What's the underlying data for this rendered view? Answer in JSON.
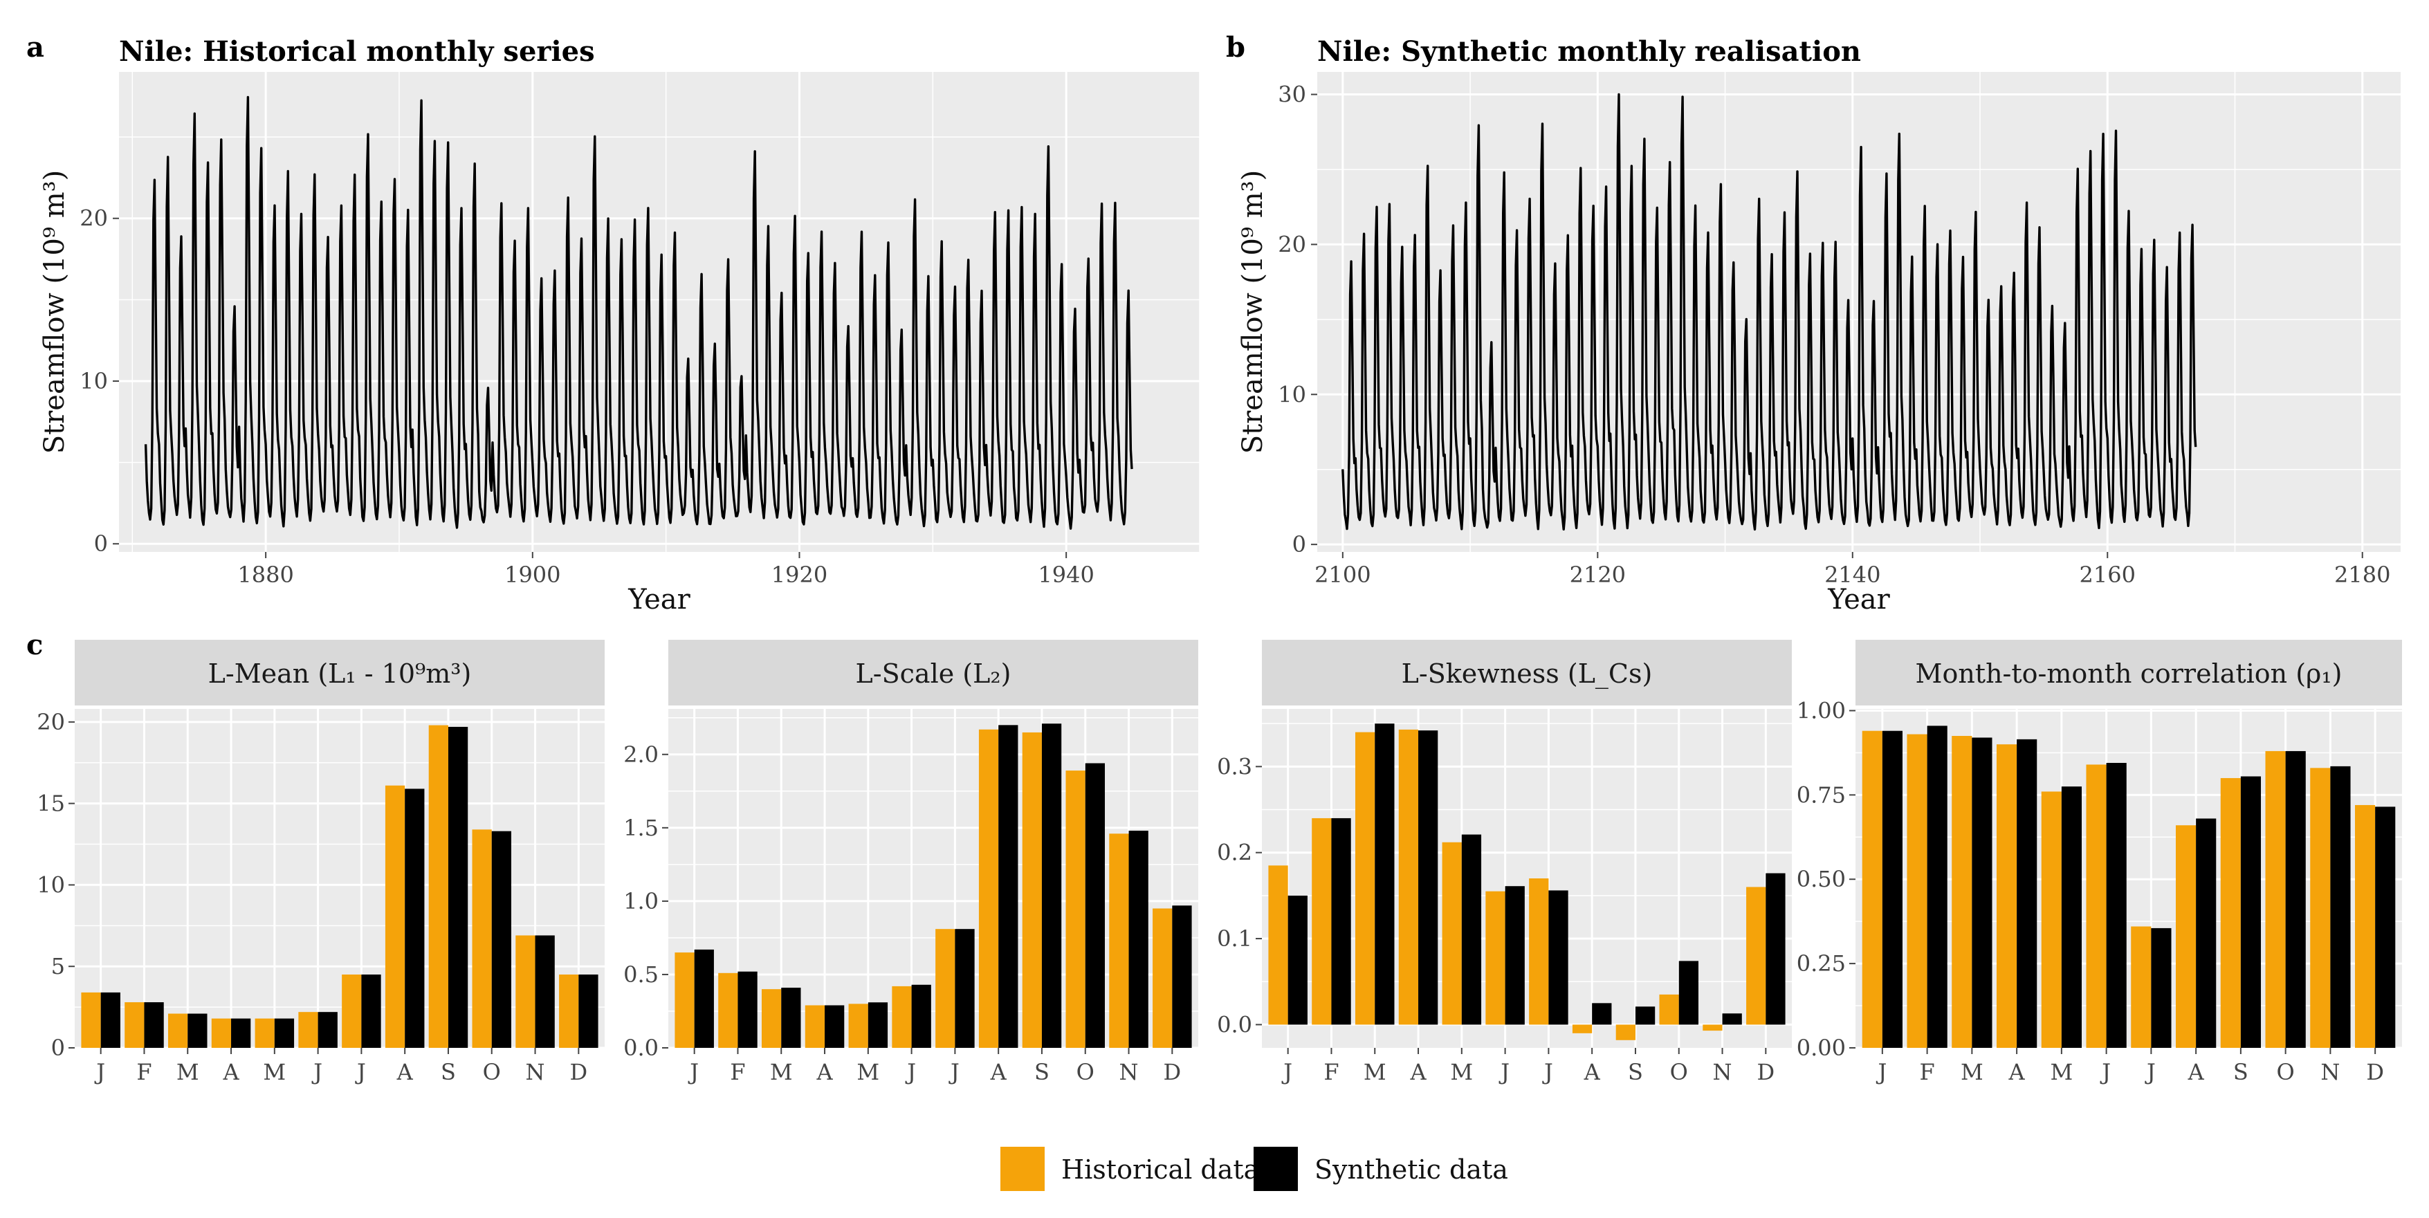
{
  "figure": {
    "panel_letters": {
      "a": "a",
      "b": "b",
      "c": "c"
    },
    "legend": [
      {
        "label": "Historical data",
        "color": "#F5A30A"
      },
      {
        "label": "Synthetic data",
        "color": "#000000"
      }
    ],
    "colors": {
      "panel_bg": "#EBEBEB",
      "grid": "#FFFFFF",
      "strip_bg": "#D9D9D9",
      "line": "#000000"
    }
  },
  "chart_data": [
    {
      "id": "a",
      "type": "line",
      "title": "Nile: Historical monthly series",
      "xlabel": "Year",
      "ylabel": "Streamflow (10⁹ m³)",
      "xlim": [
        1869,
        1950
      ],
      "ylim": [
        -0.5,
        29
      ],
      "xticks": [
        1880,
        1900,
        1920,
        1940
      ],
      "yticks": [
        0,
        10,
        20
      ],
      "start_year": 1871,
      "annual_peaks": [
        22.4,
        23.6,
        19.0,
        26.4,
        23.5,
        24.7,
        14.5,
        27.6,
        24.5,
        20.9,
        22.8,
        20.4,
        22.7,
        18.8,
        20.7,
        22.5,
        25.3,
        21.2,
        22.6,
        20.4,
        27.2,
        24.9,
        24.5,
        20.5,
        23.3,
        9.4,
        21.1,
        18.8,
        20.7,
        16.2,
        16.7,
        21.3,
        18.8,
        25.2,
        19.9,
        18.8,
        19.9,
        20.6,
        17.6,
        19.1,
        11.4,
        16.5,
        12.3,
        17.4,
        10.5,
        24.0,
        19.4,
        15.5,
        20.0,
        18.0,
        19.0,
        17.4,
        13.5,
        19.2,
        16.7,
        18.6,
        13.3,
        21.0,
        16.3,
        18.6,
        15.9,
        17.5,
        15.4,
        20.4,
        20.6,
        20.6,
        20.1,
        24.3,
        17.2,
        14.6,
        17.5,
        20.9,
        21.0,
        15.4
      ],
      "series": [
        {
          "name": "Historical monthly streamflow"
        }
      ]
    },
    {
      "id": "b",
      "type": "line",
      "title": "Nile: Synthetic monthly realisation",
      "xlabel": "Year",
      "ylabel": "Streamflow (10⁹ m³)",
      "xlim": [
        2098,
        2183
      ],
      "ylim": [
        -0.5,
        31.5
      ],
      "xticks": [
        2100,
        2120,
        2140,
        2160,
        2180
      ],
      "yticks": [
        0,
        10,
        20,
        30
      ],
      "start_year": 2100,
      "annual_peaks": [
        19.0,
        20.6,
        22.5,
        22.8,
        19.8,
        20.8,
        25.3,
        18.2,
        21.2,
        22.6,
        28.0,
        13.4,
        24.8,
        21.1,
        23.0,
        28.1,
        18.8,
        20.5,
        24.9,
        22.6,
        23.8,
        29.9,
        25.1,
        27.0,
        22.6,
        25.3,
        30.0,
        22.6,
        20.9,
        24.0,
        18.9,
        15.2,
        23.1,
        19.2,
        22.0,
        24.7,
        19.3,
        20.3,
        20.1,
        16.4,
        26.3,
        16.4,
        24.6,
        27.5,
        19.2,
        22.4,
        20.2,
        21.0,
        19.0,
        22.0,
        16.5,
        17.3,
        18.2,
        22.6,
        21.2,
        15.9,
        14.7,
        25.0,
        26.4,
        27.4,
        27.6,
        22.3,
        19.6,
        20.4,
        18.4,
        20.6,
        21.3
      ],
      "series": [
        {
          "name": "Synthetic monthly streamflow"
        }
      ]
    },
    {
      "id": "c1",
      "type": "bar",
      "title": "L-Mean (L₁ - 10⁹m³)",
      "categories": [
        "J",
        "F",
        "M",
        "A",
        "M",
        "J",
        "J",
        "A",
        "S",
        "O",
        "N",
        "D"
      ],
      "ylim": [
        0,
        20.8
      ],
      "yticks": [
        "0",
        "5",
        "10",
        "15",
        "20"
      ],
      "series": [
        {
          "name": "Historical data",
          "values": [
            3.4,
            2.8,
            2.1,
            1.8,
            1.8,
            2.2,
            4.5,
            16.1,
            19.8,
            13.4,
            6.9,
            4.5
          ]
        },
        {
          "name": "Synthetic data",
          "values": [
            3.4,
            2.8,
            2.1,
            1.8,
            1.8,
            2.2,
            4.5,
            15.9,
            19.7,
            13.3,
            6.9,
            4.5
          ]
        }
      ]
    },
    {
      "id": "c2",
      "type": "bar",
      "title": "L-Scale (L₂)",
      "categories": [
        "J",
        "F",
        "M",
        "A",
        "M",
        "J",
        "J",
        "A",
        "S",
        "O",
        "N",
        "D"
      ],
      "ylim": [
        0,
        2.31
      ],
      "yticks": [
        "0.0",
        "0.5",
        "1.0",
        "1.5",
        "2.0"
      ],
      "series": [
        {
          "name": "Historical data",
          "values": [
            0.65,
            0.51,
            0.4,
            0.29,
            0.3,
            0.42,
            0.81,
            2.17,
            2.15,
            1.89,
            1.46,
            0.95
          ]
        },
        {
          "name": "Synthetic data",
          "values": [
            0.67,
            0.52,
            0.41,
            0.29,
            0.31,
            0.43,
            0.81,
            2.2,
            2.21,
            1.94,
            1.48,
            0.97
          ]
        }
      ]
    },
    {
      "id": "c3",
      "type": "bar",
      "title": "L-Skewness (L_Cs)",
      "categories": [
        "J",
        "F",
        "M",
        "A",
        "M",
        "J",
        "J",
        "A",
        "S",
        "O",
        "N",
        "D"
      ],
      "ylim": [
        -0.027,
        0.367
      ],
      "yticks": [
        "0.0",
        "0.1",
        "0.2",
        "0.3"
      ],
      "series": [
        {
          "name": "Historical data",
          "values": [
            0.185,
            0.24,
            0.34,
            0.343,
            0.212,
            0.155,
            0.17,
            -0.01,
            -0.018,
            0.035,
            -0.007,
            0.16
          ]
        },
        {
          "name": "Synthetic data",
          "values": [
            0.15,
            0.24,
            0.35,
            0.342,
            0.221,
            0.161,
            0.156,
            0.025,
            0.021,
            0.074,
            0.013,
            0.176
          ]
        }
      ]
    },
    {
      "id": "c4",
      "type": "bar",
      "title": "Month-to-month correlation (ρ₁)",
      "categories": [
        "J",
        "F",
        "M",
        "A",
        "M",
        "J",
        "J",
        "A",
        "S",
        "O",
        "N",
        "D"
      ],
      "ylim": [
        0,
        1.005
      ],
      "yticks": [
        "0.00",
        "0.25",
        "0.50",
        "0.75",
        "1.00"
      ],
      "series": [
        {
          "name": "Historical data",
          "values": [
            0.94,
            0.93,
            0.925,
            0.9,
            0.76,
            0.84,
            0.36,
            0.66,
            0.8,
            0.88,
            0.83,
            0.72
          ]
        },
        {
          "name": "Synthetic data",
          "values": [
            0.94,
            0.955,
            0.92,
            0.915,
            0.775,
            0.845,
            0.355,
            0.68,
            0.805,
            0.88,
            0.835,
            0.715
          ]
        }
      ]
    }
  ]
}
